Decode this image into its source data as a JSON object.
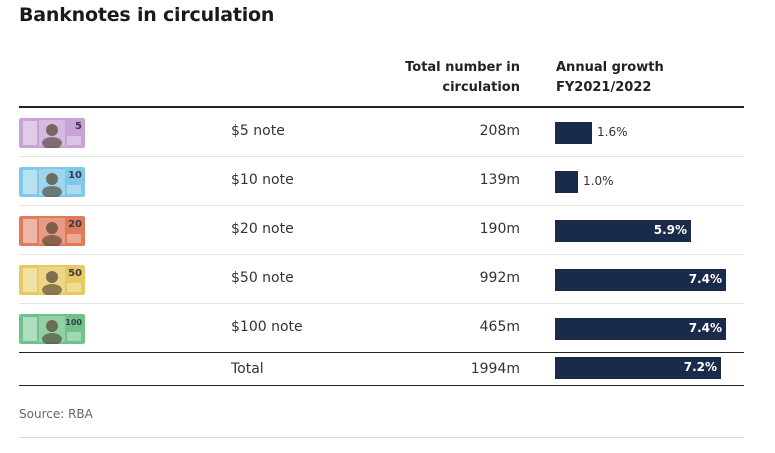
{
  "title": "Banknotes in circulation",
  "headers": {
    "number_line1": "Total number in",
    "number_line2": "circulation",
    "growth_line1": "Annual growth",
    "growth_line2": "FY2021/2022"
  },
  "source": "Source: RBA",
  "colors": {
    "bar": "#1a2a4a",
    "note_5": "#c9a3d6",
    "note_10": "#7fc8e8",
    "note_20": "#e07a5a",
    "note_50": "#e8c860",
    "note_100": "#6ec28a"
  },
  "chart_data": {
    "type": "table",
    "columns": [
      "",
      "",
      "Total number in circulation",
      "Annual growth FY2021/2022"
    ],
    "rows": [
      {
        "label": "$5 note",
        "count": "208m",
        "growth": 1.6,
        "growth_label": "1.6%",
        "note_icon": "five-dollar-note",
        "note_digits": "5"
      },
      {
        "label": "$10 note",
        "count": "139m",
        "growth": 1.0,
        "growth_label": "1.0%",
        "note_icon": "ten-dollar-note",
        "note_digits": "10"
      },
      {
        "label": "$20 note",
        "count": "190m",
        "growth": 5.9,
        "growth_label": "5.9%",
        "note_icon": "twenty-dollar-note",
        "note_digits": "20"
      },
      {
        "label": "$50 note",
        "count": "992m",
        "growth": 7.4,
        "growth_label": "7.4%",
        "note_icon": "fifty-dollar-note",
        "note_digits": "50"
      },
      {
        "label": "$100 note",
        "count": "465m",
        "growth": 7.4,
        "growth_label": "7.4%",
        "note_icon": "hundred-dollar-note",
        "note_digits": "100"
      }
    ],
    "total": {
      "label": "Total",
      "count": "1994m",
      "growth": 7.2,
      "growth_label": "7.2%"
    },
    "growth_max": 7.4
  }
}
